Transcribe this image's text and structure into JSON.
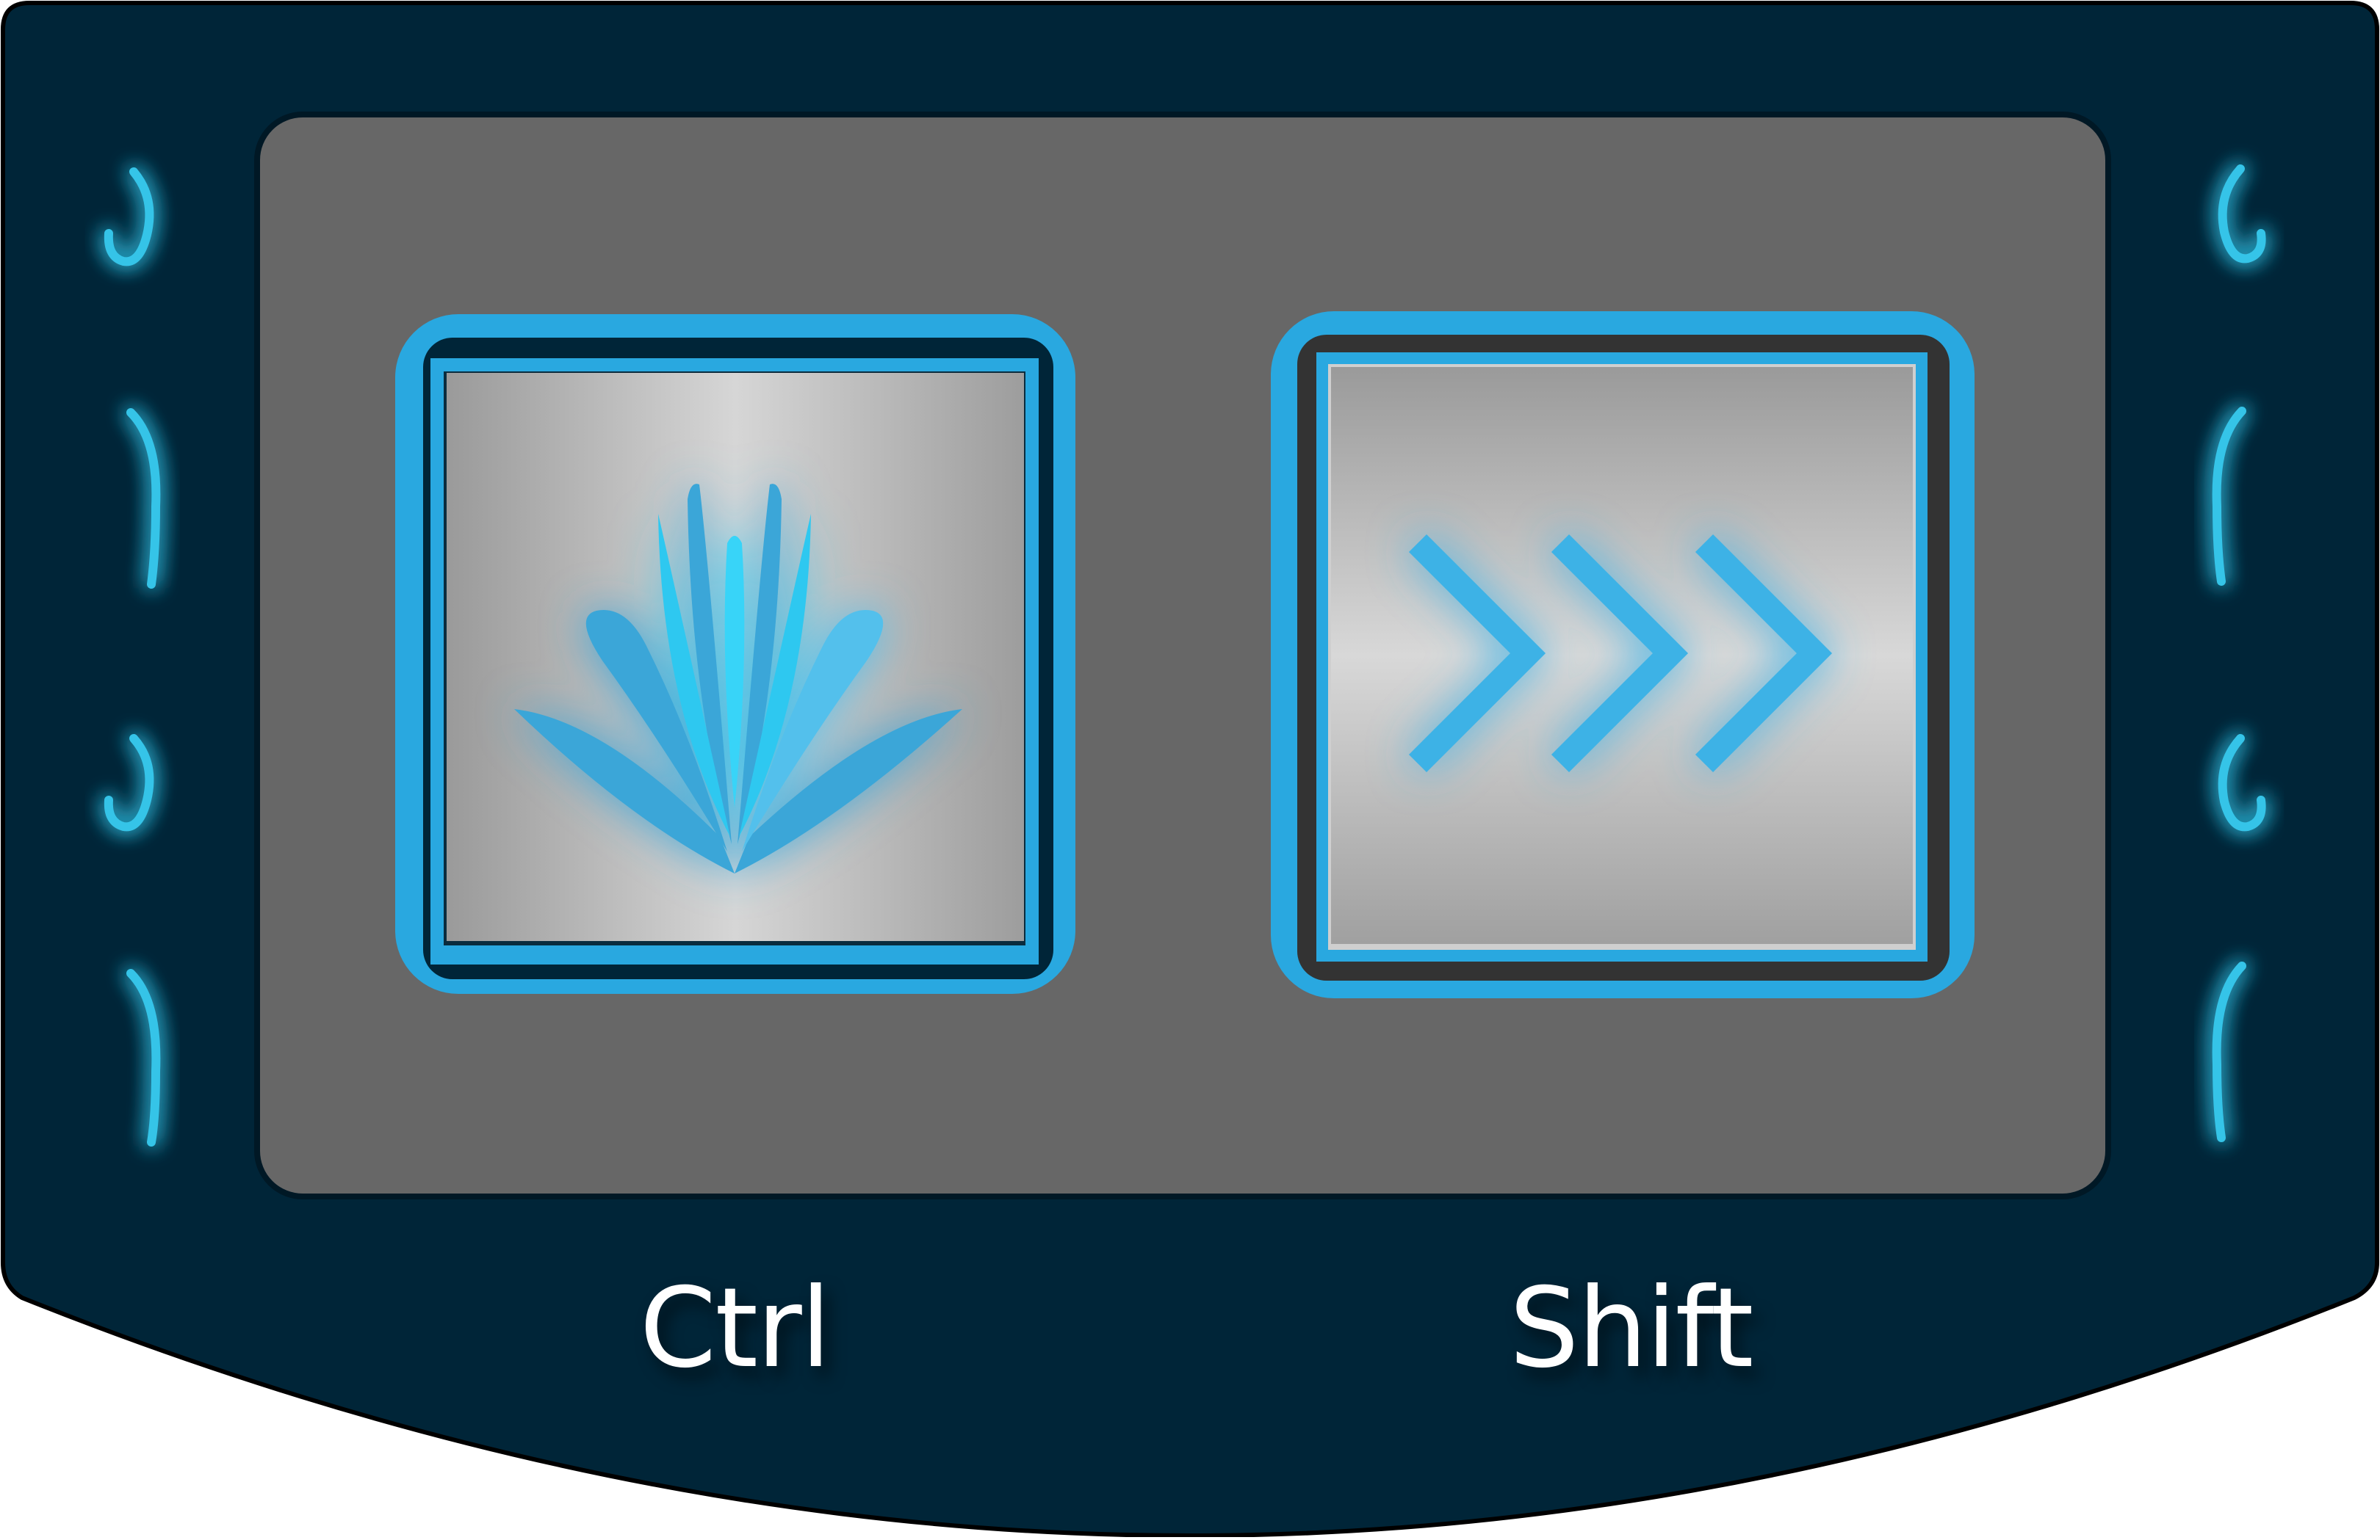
{
  "keys": [
    {
      "label": "Ctrl",
      "icon": "lotus-icon"
    },
    {
      "label": "Shift",
      "icon": "triple-chevron-right-icon"
    }
  ],
  "colors": {
    "panel": "#002538",
    "inset": "#676767",
    "key_frame": "#29a8e0",
    "key_well": "#002538",
    "glow": "#33ccee",
    "label_text": "#ffffff"
  },
  "side_indicators": {
    "left": [
      "hook-indicator-icon",
      "long-arc-indicator-icon",
      "hook-indicator-icon",
      "long-arc-indicator-icon"
    ],
    "right": [
      "hook-indicator-icon",
      "long-arc-indicator-icon",
      "hook-indicator-icon",
      "long-arc-indicator-icon"
    ]
  }
}
